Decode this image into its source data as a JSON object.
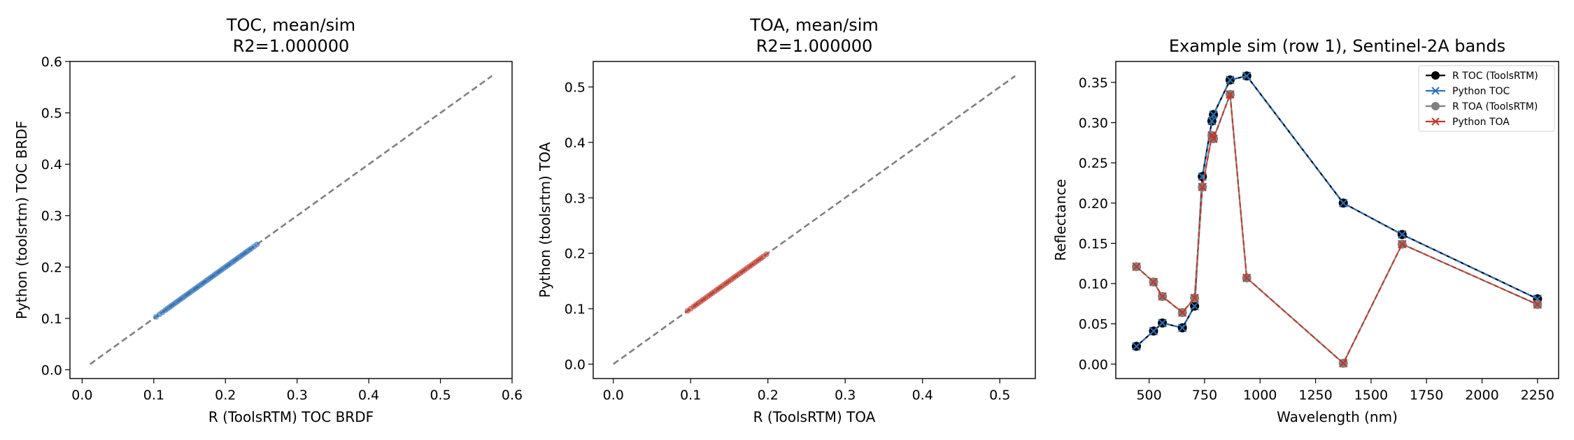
{
  "colors": {
    "toc": "#2c6fb7",
    "toa": "#c0392b",
    "black": "#000000",
    "gray": "#808080",
    "diag": "#808080"
  },
  "chart_data": [
    {
      "type": "scatter",
      "title_lines": [
        "TOC, mean/sim",
        "R2=1.000000"
      ],
      "xlabel": "R (ToolsRTM) TOC BRDF",
      "ylabel": "Python (toolsrtm) TOC BRDF",
      "xlim": [
        -0.017,
        0.6
      ],
      "ylim": [
        -0.017,
        0.6
      ],
      "xticks": [
        0.0,
        0.1,
        0.2,
        0.3,
        0.4,
        0.5,
        0.6
      ],
      "xtick_labels": [
        "0.0",
        "0.1",
        "0.2",
        "0.3",
        "0.4",
        "0.5",
        "0.6"
      ],
      "yticks": [
        0.0,
        0.1,
        0.2,
        0.3,
        0.4,
        0.5,
        0.6
      ],
      "ytick_labels": [
        "0.0",
        "0.1",
        "0.2",
        "0.3",
        "0.4",
        "0.5",
        "0.6"
      ],
      "diagonal": [
        0.011,
        0.572
      ],
      "color_key": "toc",
      "points": [
        0.103,
        0.108,
        0.112,
        0.116,
        0.119,
        0.122,
        0.125,
        0.128,
        0.131,
        0.134,
        0.137,
        0.14,
        0.143,
        0.146,
        0.149,
        0.152,
        0.155,
        0.158,
        0.161,
        0.164,
        0.167,
        0.17,
        0.173,
        0.176,
        0.179,
        0.182,
        0.185,
        0.188,
        0.191,
        0.194,
        0.197,
        0.2,
        0.203,
        0.206,
        0.209,
        0.212,
        0.215,
        0.218,
        0.221,
        0.224,
        0.227,
        0.23,
        0.233,
        0.236,
        0.24,
        0.244
      ]
    },
    {
      "type": "scatter",
      "title_lines": [
        "TOA, mean/sim",
        "R2=1.000000"
      ],
      "xlabel": "R (ToolsRTM) TOA",
      "ylabel": "Python (toolsrtm) TOA",
      "xlim": [
        -0.026,
        0.546
      ],
      "ylim": [
        -0.026,
        0.546
      ],
      "xticks": [
        0.0,
        0.1,
        0.2,
        0.3,
        0.4,
        0.5
      ],
      "xtick_labels": [
        "0.0",
        "0.1",
        "0.2",
        "0.3",
        "0.4",
        "0.5"
      ],
      "yticks": [
        0.0,
        0.1,
        0.2,
        0.3,
        0.4,
        0.5
      ],
      "ytick_labels": [
        "0.0",
        "0.1",
        "0.2",
        "0.3",
        "0.4",
        "0.5"
      ],
      "diagonal": [
        0.0,
        0.52
      ],
      "color_key": "toa",
      "points": [
        0.096,
        0.1,
        0.104,
        0.107,
        0.11,
        0.113,
        0.116,
        0.119,
        0.122,
        0.125,
        0.128,
        0.131,
        0.134,
        0.137,
        0.14,
        0.143,
        0.146,
        0.149,
        0.152,
        0.155,
        0.158,
        0.161,
        0.164,
        0.167,
        0.17,
        0.173,
        0.176,
        0.179,
        0.182,
        0.185,
        0.188,
        0.191,
        0.194,
        0.198
      ]
    },
    {
      "type": "line",
      "title_lines": [
        "Example sim (row 1), Sentinel-2A bands"
      ],
      "xlabel": "Wavelength (nm)",
      "ylabel": "Reflectance",
      "xlim": [
        350,
        2345
      ],
      "ylim": [
        -0.018,
        0.376
      ],
      "xticks": [
        500,
        750,
        1000,
        1250,
        1500,
        1750,
        2000,
        2250
      ],
      "xtick_labels": [
        "500",
        "750",
        "1000",
        "1250",
        "1500",
        "1750",
        "2000",
        "2250"
      ],
      "yticks": [
        0.0,
        0.05,
        0.1,
        0.15,
        0.2,
        0.25,
        0.3,
        0.35
      ],
      "ytick_labels": [
        "0.00",
        "0.05",
        "0.10",
        "0.15",
        "0.20",
        "0.25",
        "0.30",
        "0.35"
      ],
      "x": [
        443,
        490,
        560,
        665,
        705,
        740,
        783,
        842,
        865,
        945,
        1375,
        1610,
        2190
      ],
      "x_sorted_order_note": "",
      "bands_nm": [
        443,
        520,
        560,
        650,
        705,
        740,
        783,
        790,
        865,
        940,
        1375,
        1640,
        2250
      ],
      "series": [
        {
          "name": "R TOC (ToolsRTM)",
          "color_key": "black",
          "marker": "circle",
          "values": [
            0.022,
            0.041,
            0.051,
            0.045,
            0.072,
            0.233,
            0.302,
            0.31,
            0.353,
            0.358,
            0.2,
            0.161,
            0.081
          ]
        },
        {
          "name": "Python TOC",
          "color_key": "toc",
          "marker": "x",
          "values": [
            0.022,
            0.041,
            0.051,
            0.045,
            0.072,
            0.233,
            0.302,
            0.31,
            0.353,
            0.358,
            0.2,
            0.161,
            0.081
          ]
        },
        {
          "name": "R TOA (ToolsRTM)",
          "color_key": "gray",
          "marker": "circle",
          "values": [
            0.121,
            0.102,
            0.084,
            0.064,
            0.082,
            0.22,
            0.284,
            0.28,
            0.335,
            0.107,
            0.001,
            0.149,
            0.074
          ]
        },
        {
          "name": "Python TOA",
          "color_key": "toa",
          "marker": "x",
          "values": [
            0.121,
            0.102,
            0.084,
            0.064,
            0.082,
            0.22,
            0.284,
            0.28,
            0.335,
            0.107,
            0.001,
            0.149,
            0.074
          ]
        }
      ]
    }
  ]
}
